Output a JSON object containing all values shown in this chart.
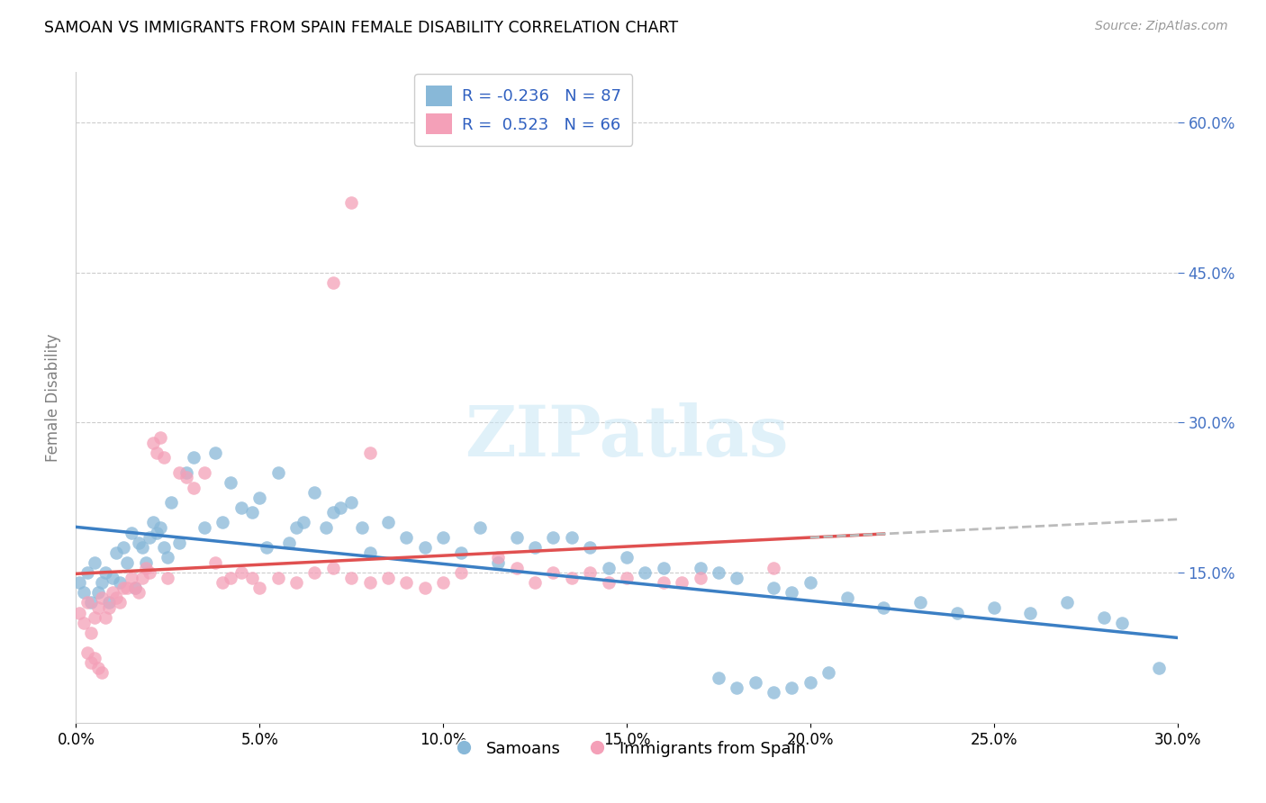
{
  "title": "SAMOAN VS IMMIGRANTS FROM SPAIN FEMALE DISABILITY CORRELATION CHART",
  "source": "Source: ZipAtlas.com",
  "ylabel": "Female Disability",
  "xlim": [
    0.0,
    0.3
  ],
  "ylim": [
    0.0,
    0.65
  ],
  "xtick_labels": [
    "0.0%",
    "5.0%",
    "10.0%",
    "15.0%",
    "20.0%",
    "25.0%",
    "30.0%"
  ],
  "xtick_vals": [
    0.0,
    0.05,
    0.1,
    0.15,
    0.2,
    0.25,
    0.3
  ],
  "ytick_labels_right": [
    "15.0%",
    "30.0%",
    "45.0%",
    "60.0%"
  ],
  "ytick_vals": [
    0.15,
    0.3,
    0.45,
    0.6
  ],
  "blue_color": "#88B8D8",
  "pink_color": "#F4A0B8",
  "blue_line_color": "#3B7FC4",
  "pink_line_color": "#E05050",
  "dashed_color": "#BBBBBB",
  "watermark": "ZIPatlas",
  "background_color": "#FFFFFF",
  "samoans_x": [
    0.001,
    0.002,
    0.003,
    0.004,
    0.005,
    0.006,
    0.007,
    0.008,
    0.009,
    0.01,
    0.011,
    0.012,
    0.013,
    0.014,
    0.015,
    0.016,
    0.017,
    0.018,
    0.019,
    0.02,
    0.021,
    0.022,
    0.023,
    0.024,
    0.025,
    0.026,
    0.028,
    0.03,
    0.032,
    0.035,
    0.038,
    0.04,
    0.042,
    0.045,
    0.048,
    0.05,
    0.052,
    0.055,
    0.058,
    0.06,
    0.062,
    0.065,
    0.068,
    0.07,
    0.072,
    0.075,
    0.078,
    0.08,
    0.085,
    0.09,
    0.095,
    0.1,
    0.105,
    0.11,
    0.115,
    0.12,
    0.125,
    0.13,
    0.135,
    0.14,
    0.145,
    0.15,
    0.155,
    0.16,
    0.17,
    0.175,
    0.18,
    0.19,
    0.195,
    0.2,
    0.21,
    0.22,
    0.23,
    0.24,
    0.25,
    0.26,
    0.27,
    0.28,
    0.175,
    0.18,
    0.185,
    0.19,
    0.195,
    0.2,
    0.205,
    0.285,
    0.295
  ],
  "samoans_y": [
    0.14,
    0.13,
    0.15,
    0.12,
    0.16,
    0.13,
    0.14,
    0.15,
    0.12,
    0.145,
    0.17,
    0.14,
    0.175,
    0.16,
    0.19,
    0.135,
    0.18,
    0.175,
    0.16,
    0.185,
    0.2,
    0.19,
    0.195,
    0.175,
    0.165,
    0.22,
    0.18,
    0.25,
    0.265,
    0.195,
    0.27,
    0.2,
    0.24,
    0.215,
    0.21,
    0.225,
    0.175,
    0.25,
    0.18,
    0.195,
    0.2,
    0.23,
    0.195,
    0.21,
    0.215,
    0.22,
    0.195,
    0.17,
    0.2,
    0.185,
    0.175,
    0.185,
    0.17,
    0.195,
    0.16,
    0.185,
    0.175,
    0.185,
    0.185,
    0.175,
    0.155,
    0.165,
    0.15,
    0.155,
    0.155,
    0.15,
    0.145,
    0.135,
    0.13,
    0.14,
    0.125,
    0.115,
    0.12,
    0.11,
    0.115,
    0.11,
    0.12,
    0.105,
    0.045,
    0.035,
    0.04,
    0.03,
    0.035,
    0.04,
    0.05,
    0.1,
    0.055
  ],
  "spain_x": [
    0.001,
    0.002,
    0.003,
    0.004,
    0.005,
    0.006,
    0.007,
    0.008,
    0.009,
    0.01,
    0.011,
    0.012,
    0.013,
    0.014,
    0.015,
    0.016,
    0.017,
    0.018,
    0.019,
    0.02,
    0.021,
    0.022,
    0.023,
    0.024,
    0.025,
    0.028,
    0.03,
    0.032,
    0.035,
    0.038,
    0.04,
    0.042,
    0.045,
    0.048,
    0.05,
    0.055,
    0.06,
    0.065,
    0.07,
    0.075,
    0.08,
    0.085,
    0.09,
    0.095,
    0.1,
    0.105,
    0.115,
    0.12,
    0.125,
    0.13,
    0.135,
    0.14,
    0.145,
    0.15,
    0.16,
    0.165,
    0.17,
    0.19,
    0.07,
    0.075,
    0.08,
    0.003,
    0.004,
    0.005,
    0.006,
    0.007
  ],
  "spain_y": [
    0.11,
    0.1,
    0.12,
    0.09,
    0.105,
    0.115,
    0.125,
    0.105,
    0.115,
    0.13,
    0.125,
    0.12,
    0.135,
    0.135,
    0.145,
    0.135,
    0.13,
    0.145,
    0.155,
    0.15,
    0.28,
    0.27,
    0.285,
    0.265,
    0.145,
    0.25,
    0.245,
    0.235,
    0.25,
    0.16,
    0.14,
    0.145,
    0.15,
    0.145,
    0.135,
    0.145,
    0.14,
    0.15,
    0.155,
    0.145,
    0.14,
    0.145,
    0.14,
    0.135,
    0.14,
    0.15,
    0.165,
    0.155,
    0.14,
    0.15,
    0.145,
    0.15,
    0.14,
    0.145,
    0.14,
    0.14,
    0.145,
    0.155,
    0.44,
    0.52,
    0.27,
    0.07,
    0.06,
    0.065,
    0.055,
    0.05
  ]
}
